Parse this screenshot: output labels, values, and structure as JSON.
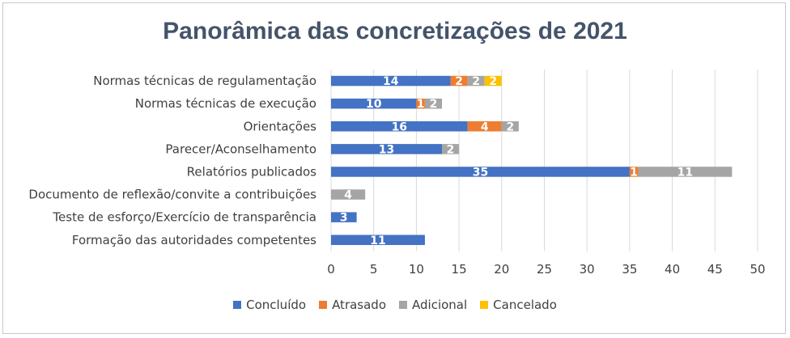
{
  "chart_data": {
    "type": "bar",
    "orientation": "horizontal",
    "stacked": true,
    "title": "Panorâmica das concretizações de 2021",
    "categories": [
      "Normas técnicas de regulamentação",
      "Normas técnicas de execução",
      "Orientações",
      "Parecer/Aconselhamento",
      "Relatórios publicados",
      "Documento de reflexão/convite a contribuições",
      "Teste de esforço/Exercício de transparência",
      "Formação das autoridades competentes"
    ],
    "series": [
      {
        "name": "Concluído",
        "color": "#4472c4",
        "values": [
          14,
          10,
          16,
          13,
          35,
          0,
          3,
          11
        ]
      },
      {
        "name": "Atrasado",
        "color": "#ed7d31",
        "values": [
          2,
          1,
          4,
          0,
          1,
          0,
          0,
          0
        ]
      },
      {
        "name": "Adicional",
        "color": "#a5a5a5",
        "values": [
          2,
          2,
          2,
          2,
          11,
          4,
          0,
          0
        ]
      },
      {
        "name": "Cancelado",
        "color": "#ffc000",
        "values": [
          2,
          0,
          0,
          0,
          0,
          0,
          0,
          0
        ]
      }
    ],
    "xlim": [
      0,
      50
    ],
    "xticks": [
      0,
      5,
      10,
      15,
      20,
      25,
      30,
      35,
      40,
      45,
      50
    ],
    "grid": true,
    "legend_position": "bottom"
  }
}
